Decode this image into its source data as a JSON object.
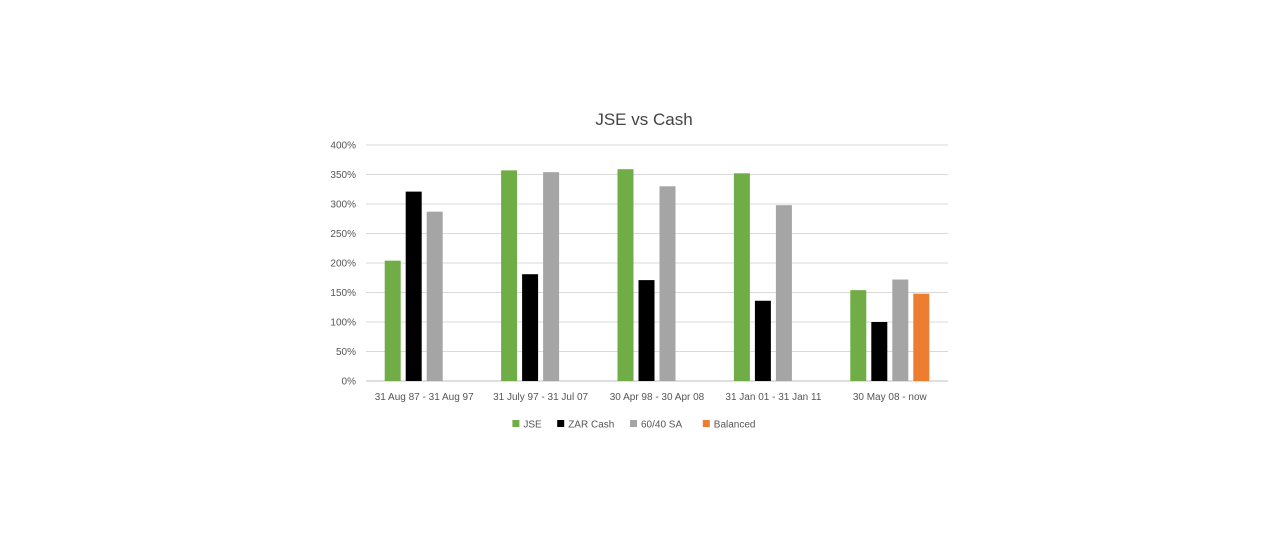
{
  "chart_data": {
    "type": "bar",
    "title": "JSE vs Cash",
    "xlabel": "",
    "ylabel": "",
    "ylim": [
      0,
      400
    ],
    "yticks": [
      0,
      50,
      100,
      150,
      200,
      250,
      300,
      350,
      400
    ],
    "ytick_labels": [
      "0%",
      "50%",
      "100%",
      "150%",
      "200%",
      "250%",
      "300%",
      "350%",
      "400%"
    ],
    "grid": true,
    "legend_position": "bottom",
    "categories": [
      "31 Aug 87 - 31 Aug 97",
      "31 July 97 - 31 Jul 07",
      "30 Apr 98 - 30 Apr 08",
      "31 Jan 01 - 31 Jan 11",
      "30 May 08 - now"
    ],
    "series": [
      {
        "name": "JSE",
        "color": "#70ad47",
        "values": [
          204,
          357,
          359,
          352,
          154
        ]
      },
      {
        "name": "ZAR Cash",
        "color": "#000000",
        "values": [
          321,
          181,
          171,
          136,
          100
        ]
      },
      {
        "name": "60/40 SA",
        "color": "#a5a5a5",
        "values": [
          287,
          354,
          330,
          298,
          172
        ]
      },
      {
        "name": "Balanced",
        "color": "#ed7d31",
        "values": [
          null,
          null,
          null,
          null,
          148
        ]
      }
    ]
  }
}
